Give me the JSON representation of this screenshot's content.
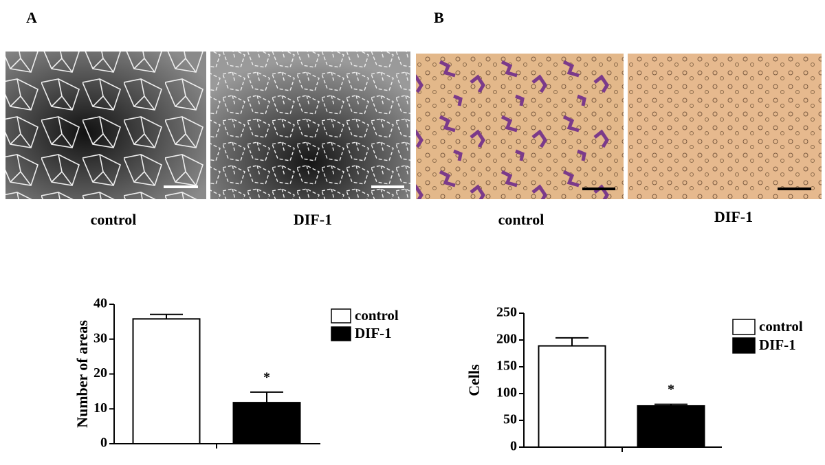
{
  "panels": [
    {
      "label": "A",
      "captions": [
        "control",
        "DIF-1"
      ]
    },
    {
      "label": "B",
      "captions": [
        "control",
        "DIF-1"
      ]
    }
  ],
  "chart_data": [
    {
      "type": "bar",
      "ylabel": "Number of areas",
      "categories": [
        null
      ],
      "series": [
        {
          "name": "control",
          "color": "#ffffff",
          "values": [
            35.8
          ],
          "errors": [
            1.3
          ]
        },
        {
          "name": "DIF-1",
          "color": "#000000",
          "values": [
            11.8
          ],
          "errors": [
            3.0
          ]
        }
      ],
      "annotation": "*",
      "ylim": [
        0,
        40
      ],
      "yticks": [
        0,
        10,
        20,
        30,
        40
      ]
    },
    {
      "type": "bar",
      "ylabel": "Cells",
      "categories": [
        null
      ],
      "series": [
        {
          "name": "control",
          "color": "#ffffff",
          "values": [
            189
          ],
          "errors": [
            15
          ]
        },
        {
          "name": "DIF-1",
          "color": "#000000",
          "values": [
            77
          ],
          "errors": [
            3
          ]
        }
      ],
      "annotation": "*",
      "ylim": [
        0,
        250
      ],
      "yticks": [
        0,
        50,
        100,
        150,
        200,
        250
      ]
    }
  ]
}
